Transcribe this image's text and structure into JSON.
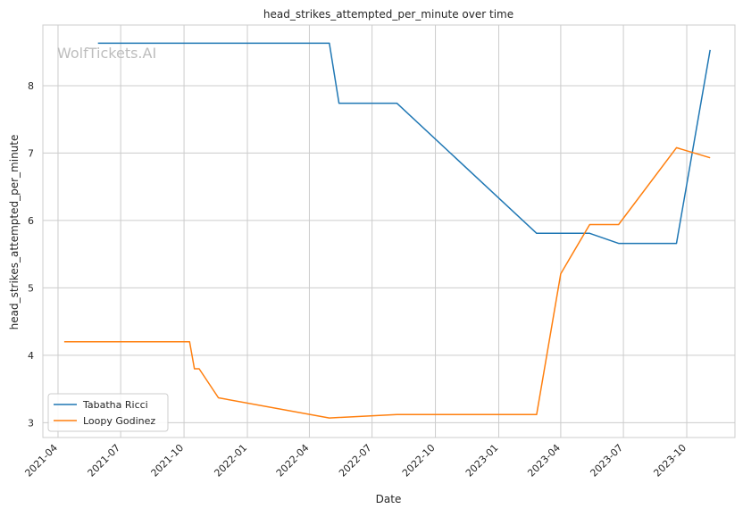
{
  "chart_data": {
    "type": "line",
    "title": "head_strikes_attempted_per_minute over time",
    "xlabel": "Date",
    "ylabel": "head_strikes_attempted_per_minute",
    "watermark": "WolfTickets.AI",
    "xlim": [
      "2021-03-10",
      "2023-12-10"
    ],
    "ylim": [
      2.78,
      8.9
    ],
    "x_ticks": [
      "2021-04",
      "2021-07",
      "2021-10",
      "2022-01",
      "2022-04",
      "2022-07",
      "2022-10",
      "2023-01",
      "2023-04",
      "2023-07",
      "2023-10"
    ],
    "y_ticks": [
      3,
      4,
      5,
      6,
      7,
      8
    ],
    "grid": true,
    "legend_position": "lower-left",
    "colors": {
      "Tabatha Ricci": "#1f77b4",
      "Loopy Godinez": "#ff7f0e"
    },
    "series": [
      {
        "name": "Tabatha Ricci",
        "points": [
          {
            "x": "2021-05-29",
            "y": 8.63
          },
          {
            "x": "2022-04-30",
            "y": 8.63
          },
          {
            "x": "2022-05-14",
            "y": 7.74
          },
          {
            "x": "2022-08-06",
            "y": 7.74
          },
          {
            "x": "2023-02-25",
            "y": 5.81
          },
          {
            "x": "2023-05-13",
            "y": 5.81
          },
          {
            "x": "2023-06-24",
            "y": 5.66
          },
          {
            "x": "2023-09-16",
            "y": 5.66
          },
          {
            "x": "2023-11-04",
            "y": 8.53
          }
        ]
      },
      {
        "name": "Loopy Godinez",
        "points": [
          {
            "x": "2021-04-10",
            "y": 4.2
          },
          {
            "x": "2021-10-09",
            "y": 4.2
          },
          {
            "x": "2021-10-16",
            "y": 3.8
          },
          {
            "x": "2021-10-23",
            "y": 3.8
          },
          {
            "x": "2021-11-20",
            "y": 3.37
          },
          {
            "x": "2022-04-30",
            "y": 3.07
          },
          {
            "x": "2022-08-06",
            "y": 3.12
          },
          {
            "x": "2023-02-25",
            "y": 3.12
          },
          {
            "x": "2023-04-01",
            "y": 5.21
          },
          {
            "x": "2023-05-13",
            "y": 5.94
          },
          {
            "x": "2023-06-24",
            "y": 5.94
          },
          {
            "x": "2023-09-16",
            "y": 7.08
          },
          {
            "x": "2023-11-04",
            "y": 6.93
          }
        ]
      }
    ]
  }
}
